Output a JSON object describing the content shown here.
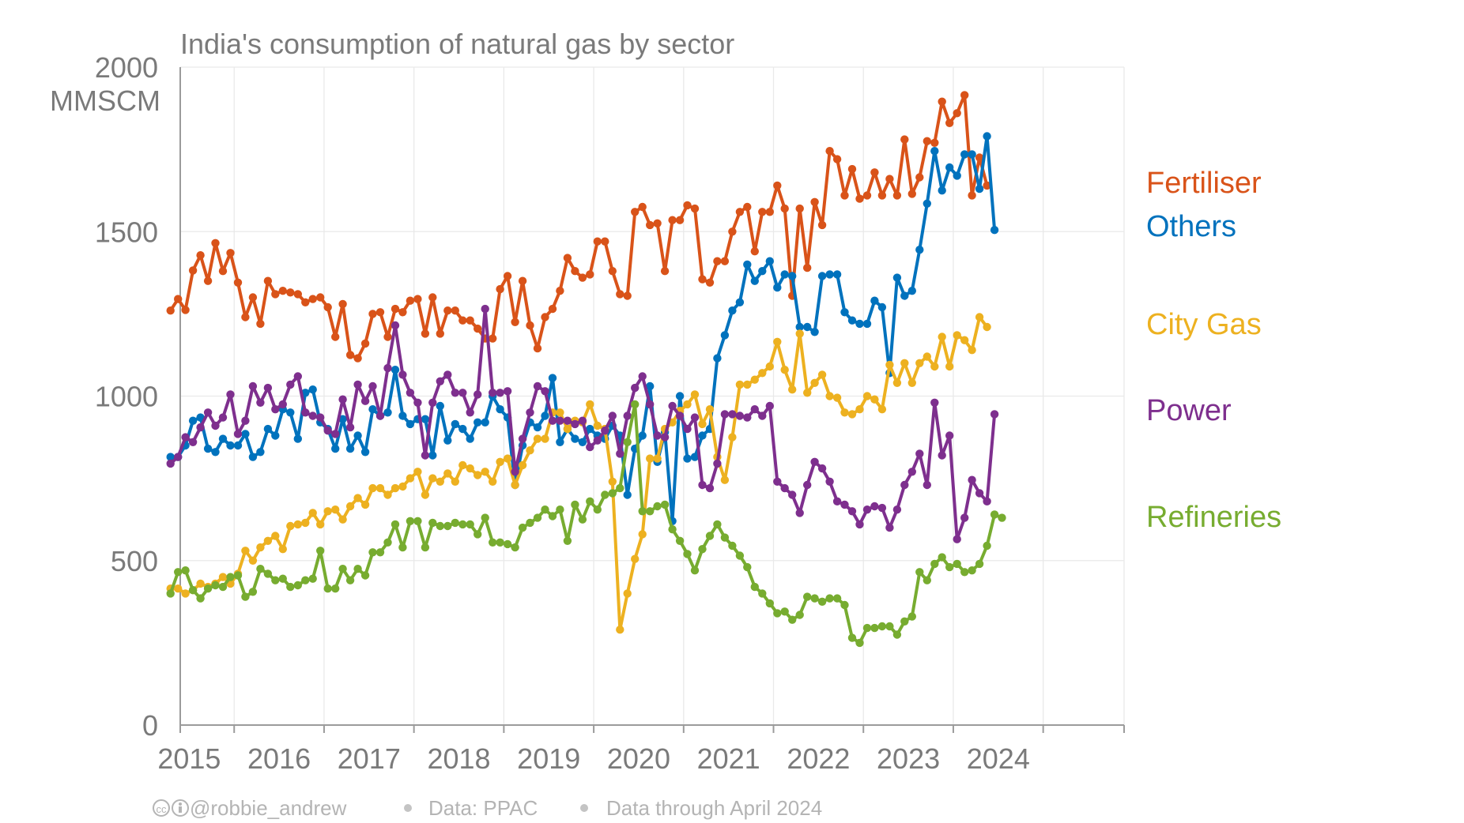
{
  "chart_data": {
    "type": "line",
    "title": "India's consumption of natural gas by sector",
    "ylabel": "MMSCM",
    "ylim": [
      0,
      2000
    ],
    "yticks": [
      0,
      500,
      1000,
      1500,
      2000
    ],
    "xlim": [
      2014.4,
      2024.9
    ],
    "xticks": [
      2015,
      2016,
      2017,
      2018,
      2019,
      2020,
      2021,
      2022,
      2023,
      2024
    ],
    "xtick_labels": [
      "2015",
      "2016",
      "2017",
      "2018",
      "2019",
      "2020",
      "2021",
      "2022",
      "2023",
      "2024"
    ],
    "grid": true,
    "legend_placement": "right, labels placed at line ends",
    "x_start": "April 2014",
    "x_end": "April 2024",
    "series": [
      {
        "name": "Fertiliser",
        "color": "#d95319",
        "values": [
          1260,
          1295,
          1262,
          1382,
          1428,
          1350,
          1465,
          1380,
          1435,
          1345,
          1240,
          1300,
          1220,
          1350,
          1310,
          1320,
          1315,
          1310,
          1285,
          1295,
          1300,
          1270,
          1180,
          1280,
          1125,
          1115,
          1160,
          1250,
          1255,
          1180,
          1265,
          1255,
          1290,
          1295,
          1190,
          1300,
          1190,
          1260,
          1260,
          1230,
          1230,
          1205,
          1175,
          1175,
          1325,
          1365,
          1225,
          1350,
          1215,
          1145,
          1240,
          1265,
          1320,
          1420,
          1380,
          1360,
          1370,
          1470,
          1470,
          1380,
          1310,
          1305,
          1560,
          1575,
          1520,
          1525,
          1380,
          1535,
          1535,
          1580,
          1570,
          1355,
          1345,
          1410,
          1410,
          1500,
          1560,
          1575,
          1440,
          1560,
          1560,
          1640,
          1570,
          1305,
          1570,
          1390,
          1590,
          1520,
          1745,
          1720,
          1610,
          1690,
          1600,
          1610,
          1680,
          1610,
          1660,
          1610,
          1780,
          1615,
          1665,
          1775,
          1770,
          1895,
          1830,
          1860,
          1915,
          1610,
          1725,
          1640
        ]
      },
      {
        "name": "Others",
        "color": "#0072bd",
        "values": [
          815,
          815,
          850,
          925,
          935,
          840,
          830,
          870,
          850,
          850,
          885,
          815,
          830,
          900,
          880,
          960,
          950,
          870,
          1010,
          1020,
          920,
          900,
          840,
          930,
          840,
          880,
          830,
          960,
          940,
          950,
          1080,
          940,
          915,
          930,
          930,
          820,
          970,
          865,
          915,
          900,
          870,
          920,
          920,
          1000,
          960,
          935,
          730,
          850,
          920,
          905,
          940,
          1055,
          860,
          900,
          870,
          860,
          900,
          880,
          870,
          910,
          880,
          700,
          840,
          880,
          1030,
          800,
          890,
          620,
          1000,
          810,
          815,
          880,
          900,
          1115,
          1185,
          1260,
          1285,
          1400,
          1350,
          1380,
          1410,
          1330,
          1370,
          1365,
          1210,
          1210,
          1195,
          1365,
          1370,
          1370,
          1255,
          1230,
          1220,
          1220,
          1290,
          1270,
          1070,
          1360,
          1305,
          1320,
          1445,
          1585,
          1745,
          1625,
          1695,
          1670,
          1735,
          1735,
          1630,
          1790,
          1505
        ]
      },
      {
        "name": "City Gas",
        "color": "#edb120",
        "values": [
          415,
          415,
          400,
          410,
          430,
          420,
          430,
          450,
          430,
          460,
          530,
          500,
          540,
          560,
          575,
          535,
          605,
          610,
          615,
          645,
          610,
          650,
          655,
          625,
          665,
          690,
          670,
          720,
          720,
          700,
          720,
          725,
          750,
          770,
          700,
          750,
          740,
          765,
          740,
          790,
          780,
          760,
          770,
          740,
          800,
          810,
          730,
          790,
          835,
          870,
          870,
          950,
          950,
          900,
          925,
          920,
          975,
          910,
          900,
          740,
          290,
          400,
          505,
          580,
          810,
          810,
          900,
          920,
          955,
          975,
          1005,
          915,
          960,
          815,
          745,
          875,
          1035,
          1035,
          1050,
          1070,
          1090,
          1165,
          1080,
          1020,
          1190,
          1010,
          1040,
          1065,
          1000,
          995,
          950,
          945,
          960,
          1000,
          990,
          960,
          1095,
          1040,
          1100,
          1040,
          1100,
          1120,
          1090,
          1180,
          1090,
          1185,
          1170,
          1140,
          1240,
          1210
        ]
      },
      {
        "name": "Power",
        "color": "#7e2f8e",
        "values": [
          795,
          815,
          875,
          860,
          905,
          950,
          910,
          935,
          1005,
          885,
          925,
          1030,
          980,
          1025,
          960,
          975,
          1035,
          1060,
          950,
          940,
          935,
          895,
          885,
          990,
          905,
          1035,
          985,
          1030,
          940,
          1085,
          1215,
          1065,
          1010,
          980,
          820,
          980,
          1045,
          1065,
          1010,
          1010,
          950,
          1005,
          1265,
          1010,
          1010,
          1015,
          770,
          870,
          950,
          1030,
          1015,
          925,
          925,
          925,
          915,
          925,
          845,
          865,
          895,
          940,
          825,
          940,
          1025,
          1060,
          975,
          880,
          875,
          970,
          940,
          900,
          935,
          730,
          720,
          795,
          945,
          945,
          940,
          935,
          960,
          940,
          970,
          740,
          720,
          700,
          645,
          730,
          800,
          780,
          740,
          680,
          670,
          650,
          610,
          655,
          665,
          660,
          600,
          655,
          730,
          770,
          825,
          730,
          980,
          820,
          880,
          565,
          630,
          745,
          705,
          680,
          945
        ]
      },
      {
        "name": "Refineries",
        "color": "#77ac30",
        "values": [
          400,
          465,
          470,
          410,
          385,
          415,
          425,
          420,
          450,
          455,
          390,
          405,
          475,
          460,
          440,
          445,
          420,
          425,
          440,
          445,
          530,
          415,
          415,
          475,
          440,
          475,
          455,
          525,
          525,
          555,
          610,
          540,
          620,
          620,
          540,
          615,
          605,
          605,
          615,
          610,
          610,
          580,
          630,
          555,
          555,
          550,
          540,
          600,
          615,
          630,
          655,
          635,
          655,
          560,
          670,
          625,
          680,
          655,
          700,
          705,
          720,
          860,
          975,
          650,
          650,
          665,
          670,
          595,
          560,
          520,
          470,
          535,
          575,
          610,
          570,
          545,
          515,
          480,
          420,
          400,
          370,
          340,
          345,
          320,
          335,
          390,
          385,
          375,
          385,
          385,
          365,
          265,
          250,
          295,
          295,
          300,
          300,
          275,
          315,
          330,
          465,
          440,
          490,
          510,
          480,
          490,
          465,
          470,
          490,
          545,
          640,
          630
        ]
      }
    ],
    "footer": {
      "author": "@robbie_andrew",
      "source": "Data: PPAC",
      "coverage": "Data through April 2024"
    }
  }
}
